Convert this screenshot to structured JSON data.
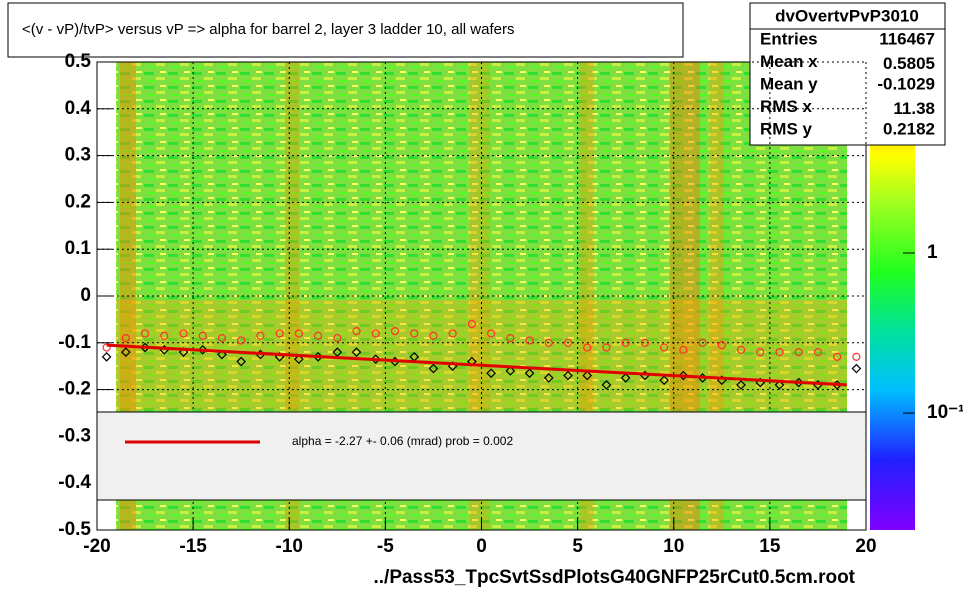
{
  "chart_data": {
    "type": "scatter",
    "title": "<(v - vP)/tvP> versus   vP => alpha for barrel 2, layer 3 ladder 10, all wafers",
    "x_label": "../Pass53_TpcSvtSsdPlotsG40GNFP25rCut0.5cm.root",
    "xlim": [
      -20,
      20
    ],
    "xticks": [
      -20,
      -15,
      -10,
      -5,
      0,
      5,
      10,
      15,
      20
    ],
    "ylim": [
      -0.5,
      0.5
    ],
    "yticks": [
      -0.5,
      -0.4,
      -0.3,
      -0.2,
      -0.1,
      0,
      0.1,
      0.2,
      0.3,
      0.4,
      0.5
    ],
    "grid": true,
    "zlog": true,
    "zlim": [
      0.0186,
      15.6
    ],
    "zticks": [
      {
        "value": 1,
        "label": "1"
      },
      {
        "value": 0.1,
        "label": "10⁻¹"
      }
    ],
    "x": [
      -19.5,
      -18.5,
      -17.5,
      -16.5,
      -15.5,
      -14.5,
      -13.5,
      -12.5,
      -11.5,
      -10.5,
      -9.5,
      -8.5,
      -7.5,
      -6.5,
      -5.5,
      -4.5,
      -3.5,
      -2.5,
      -1.5,
      -0.5,
      0.5,
      1.5,
      2.5,
      3.5,
      4.5,
      5.5,
      6.5,
      7.5,
      8.5,
      9.5,
      10.5,
      11.5,
      12.5,
      13.5,
      14.5,
      15.5,
      16.5,
      17.5,
      18.5,
      19.5
    ],
    "series": [
      {
        "color": "#000000",
        "marker": "diamond",
        "values": [
          -0.13,
          -0.12,
          -0.11,
          -0.115,
          -0.12,
          -0.115,
          -0.125,
          -0.14,
          -0.125,
          -0.13,
          -0.135,
          -0.13,
          -0.12,
          -0.12,
          -0.135,
          -0.14,
          -0.13,
          -0.155,
          -0.15,
          -0.14,
          -0.165,
          -0.16,
          -0.165,
          -0.175,
          -0.17,
          -0.17,
          -0.19,
          -0.175,
          -0.17,
          -0.18,
          -0.17,
          -0.175,
          -0.18,
          -0.19,
          -0.185,
          -0.19,
          -0.185,
          -0.19,
          -0.19,
          -0.155
        ]
      },
      {
        "color": "#ff3030",
        "marker": "circle",
        "values": [
          -0.11,
          -0.09,
          -0.08,
          -0.085,
          -0.08,
          -0.085,
          -0.09,
          -0.095,
          -0.085,
          -0.08,
          -0.08,
          -0.085,
          -0.09,
          -0.075,
          -0.08,
          -0.075,
          -0.08,
          -0.085,
          -0.08,
          -0.06,
          -0.08,
          -0.09,
          -0.095,
          -0.1,
          -0.1,
          -0.11,
          -0.11,
          -0.1,
          -0.1,
          -0.11,
          -0.115,
          -0.1,
          -0.105,
          -0.115,
          -0.12,
          -0.12,
          -0.12,
          -0.12,
          -0.13,
          -0.13
        ]
      }
    ],
    "fit": {
      "x": [
        -19.5,
        19
      ],
      "values": [
        -0.105,
        -0.19
      ],
      "color": "#e00000",
      "legend": "alpha =   -2.27 +-  0.06 (mrad) prob = 0.002"
    }
  },
  "stats": {
    "title": "dvOvertvPvP3010",
    "rows": [
      {
        "label": "Entries",
        "value": 116467
      },
      {
        "label": "Mean x",
        "value": 0.5805
      },
      {
        "label": "Mean y",
        "value": -0.1029
      },
      {
        "label": "RMS x",
        "value": 11.38
      },
      {
        "label": "RMS y",
        "value": 0.2182
      }
    ]
  }
}
